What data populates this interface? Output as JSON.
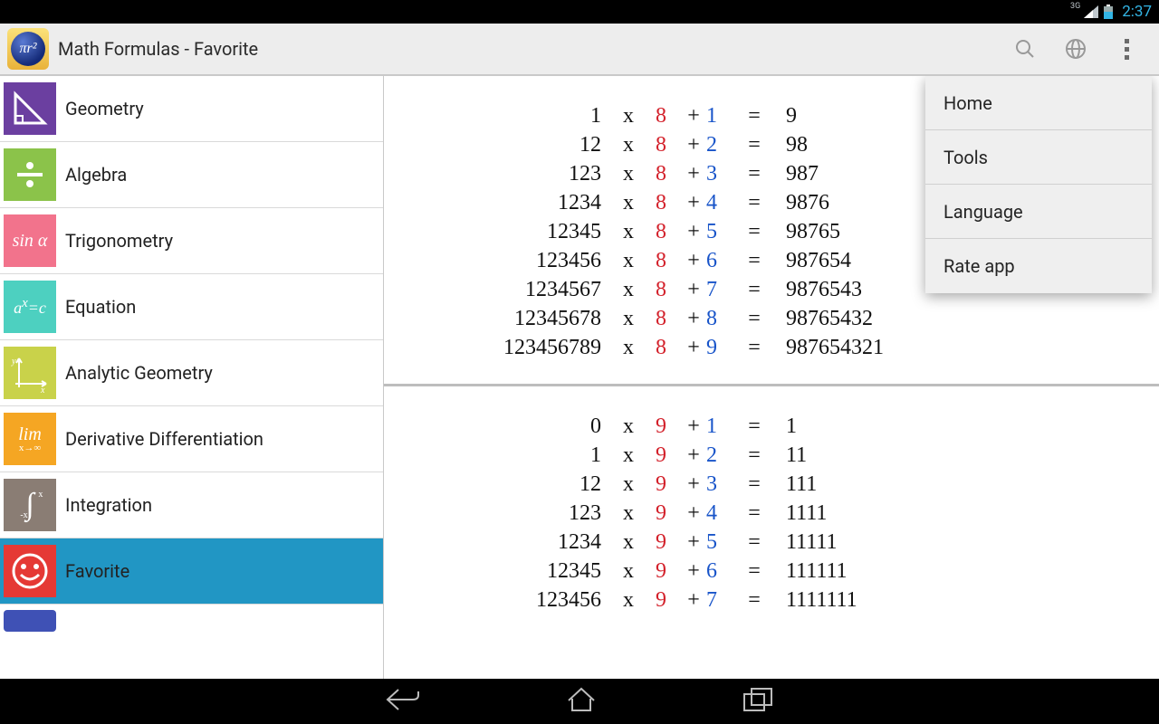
{
  "status_bar": {
    "network_label": "3G",
    "clock": "2:37"
  },
  "action_bar": {
    "title": "Math Formulas - Favorite",
    "app_icon_text": "πr²"
  },
  "overflow_menu": {
    "items": [
      {
        "label": "Home"
      },
      {
        "label": "Tools"
      },
      {
        "label": "Language"
      },
      {
        "label": "Rate app"
      }
    ]
  },
  "sidebar": {
    "items": [
      {
        "label": "Geometry",
        "bg": "#6b3fa0",
        "icon": "triangle"
      },
      {
        "label": "Algebra",
        "bg": "#8bc34a",
        "icon": "divide"
      },
      {
        "label": "Trigonometry",
        "bg": "#f2738c",
        "icon": "sin"
      },
      {
        "label": "Equation",
        "bg": "#4dd0c0",
        "icon": "axc"
      },
      {
        "label": "Analytic Geometry",
        "bg": "#c9d24a",
        "icon": "axes"
      },
      {
        "label": "Derivative Differentiation",
        "bg": "#f5a623",
        "icon": "lim"
      },
      {
        "label": "Integration",
        "bg": "#8a7d74",
        "icon": "integral"
      },
      {
        "label": "Favorite",
        "bg": "#e53935",
        "icon": "smile",
        "selected": true
      }
    ],
    "partial_next_bg": "#3f51b5"
  },
  "content": {
    "blocks": [
      {
        "multiplier_color": "#d3202a",
        "addend_color": "#1854c9",
        "rows": [
          {
            "n": "1",
            "m": "8",
            "a": "1",
            "r": "9"
          },
          {
            "n": "12",
            "m": "8",
            "a": "2",
            "r": "98"
          },
          {
            "n": "123",
            "m": "8",
            "a": "3",
            "r": "987"
          },
          {
            "n": "1234",
            "m": "8",
            "a": "4",
            "r": "9876"
          },
          {
            "n": "12345",
            "m": "8",
            "a": "5",
            "r": "98765"
          },
          {
            "n": "123456",
            "m": "8",
            "a": "6",
            "r": "987654"
          },
          {
            "n": "1234567",
            "m": "8",
            "a": "7",
            "r": "9876543"
          },
          {
            "n": "12345678",
            "m": "8",
            "a": "8",
            "r": "98765432"
          },
          {
            "n": "123456789",
            "m": "8",
            "a": "9",
            "r": "987654321"
          }
        ]
      },
      {
        "multiplier_color": "#d3202a",
        "addend_color": "#1854c9",
        "rows": [
          {
            "n": "0",
            "m": "9",
            "a": "1",
            "r": "1"
          },
          {
            "n": "1",
            "m": "9",
            "a": "2",
            "r": "11"
          },
          {
            "n": "12",
            "m": "9",
            "a": "3",
            "r": "111"
          },
          {
            "n": "123",
            "m": "9",
            "a": "4",
            "r": "1111"
          },
          {
            "n": "1234",
            "m": "9",
            "a": "5",
            "r": "11111"
          },
          {
            "n": "12345",
            "m": "9",
            "a": "6",
            "r": "111111"
          },
          {
            "n": "123456",
            "m": "9",
            "a": "7",
            "r": "1111111"
          }
        ]
      }
    ]
  }
}
